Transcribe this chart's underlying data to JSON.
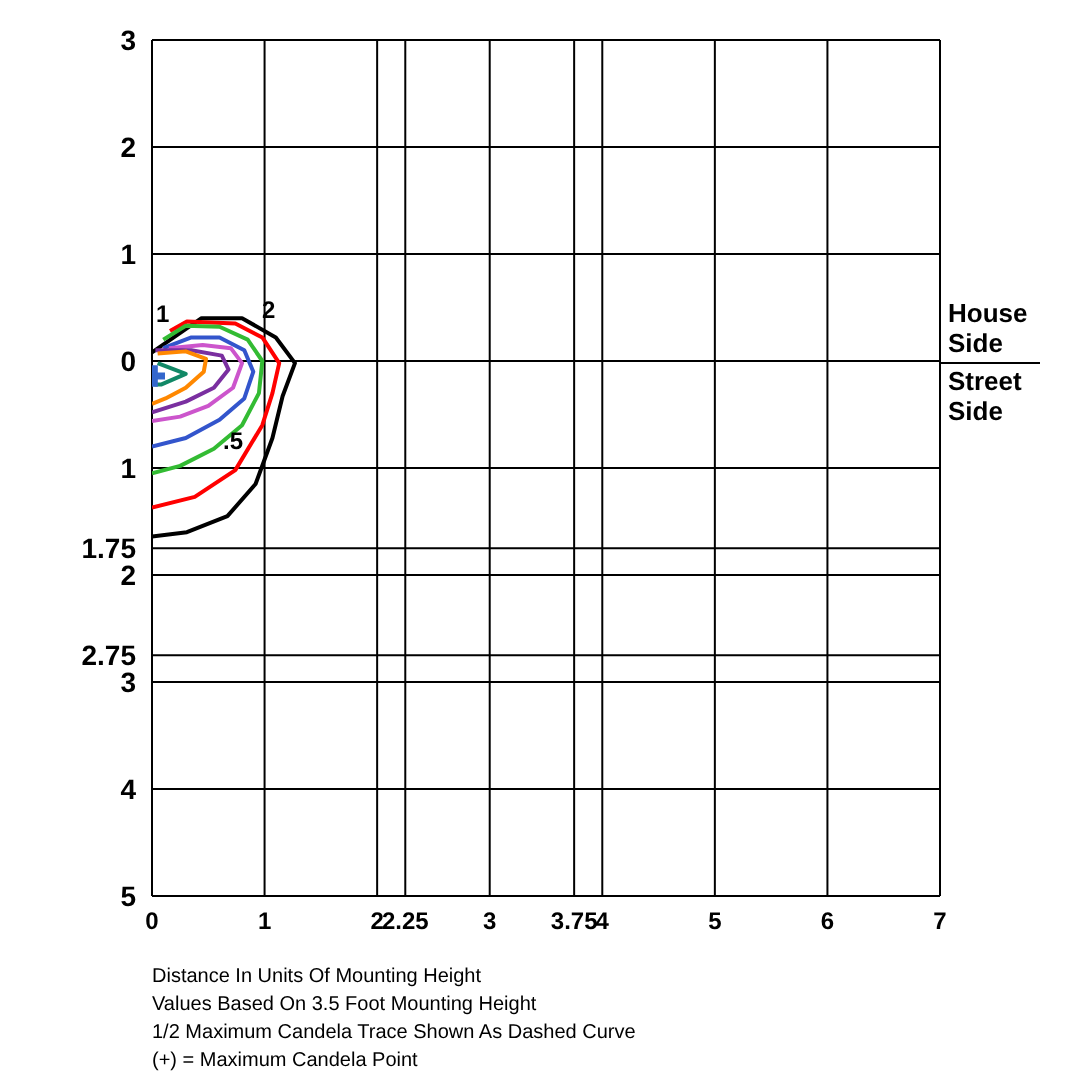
{
  "chart_data": {
    "type": "line",
    "xlim": [
      0,
      7
    ],
    "ylim": [
      -5,
      3
    ],
    "xticks": [
      0,
      1,
      2,
      2.25,
      3,
      3.75,
      4,
      5,
      6,
      7
    ],
    "yticks": [
      3,
      2,
      1,
      0,
      {
        "value": -1,
        "label": "1"
      },
      {
        "value": -1.75,
        "label": "1.75"
      },
      {
        "value": -2,
        "label": "2"
      },
      {
        "value": -2.75,
        "label": "2.75"
      },
      {
        "value": -3,
        "label": "3"
      },
      {
        "value": -4,
        "label": "4"
      },
      {
        "value": -5,
        "label": "5"
      }
    ],
    "grid": true,
    "legend": false,
    "marker": "none",
    "line_style": "solid",
    "series": [
      {
        "color": "#000000",
        "x": [
          0,
          0.44,
          0.8,
          1.1,
          1.27,
          1.16,
          1.07,
          0.92,
          0.67,
          0.31,
          0
        ],
        "values": [
          0.08,
          0.4,
          0.4,
          0.22,
          -0.02,
          -0.33,
          -0.72,
          -1.15,
          -1.45,
          -1.6,
          -1.64
        ]
      },
      {
        "color": "#ff0000",
        "x": [
          0.16,
          0.31,
          0.74,
          0.98,
          1.13,
          1.07,
          0.98,
          0.74,
          0.38,
          0
        ],
        "values": [
          0.28,
          0.37,
          0.35,
          0.22,
          -0.02,
          -0.3,
          -0.6,
          -1.02,
          -1.27,
          -1.37
        ]
      },
      {
        "color": "#33bb33",
        "x": [
          0.1,
          0.3,
          0.6,
          0.85,
          0.98,
          0.95,
          0.8,
          0.55,
          0.25,
          0
        ],
        "values": [
          0.2,
          0.33,
          0.32,
          0.2,
          0,
          -0.3,
          -0.6,
          -0.82,
          -0.98,
          -1.05
        ]
      },
      {
        "color": "#3355cc",
        "x": [
          0.1,
          0.35,
          0.6,
          0.82,
          0.9,
          0.82,
          0.6,
          0.3,
          0
        ],
        "values": [
          0.12,
          0.22,
          0.22,
          0.1,
          -0.1,
          -0.35,
          -0.55,
          -0.72,
          -0.8
        ]
      },
      {
        "color": "#cc55cc",
        "x": [
          0.15,
          0.45,
          0.7,
          0.8,
          0.72,
          0.5,
          0.25,
          0
        ],
        "values": [
          0.12,
          0.15,
          0.12,
          -0.02,
          -0.25,
          -0.42,
          -0.52,
          -0.56
        ]
      },
      {
        "color": "#7a2fa0",
        "x": [
          0.03,
          0.35,
          0.62,
          0.68,
          0.55,
          0.3,
          0
        ],
        "values": [
          0.1,
          0.1,
          0.05,
          -0.08,
          -0.25,
          -0.38,
          -0.48
        ]
      },
      {
        "color": "#ff8800",
        "x": [
          0.05,
          0.3,
          0.48,
          0.46,
          0.3,
          0.12,
          0
        ],
        "values": [
          0.07,
          0.09,
          0.02,
          -0.1,
          -0.25,
          -0.35,
          -0.4
        ]
      },
      {
        "color": "#118866",
        "x": [
          0.05,
          0.3,
          0.08,
          0.02
        ],
        "values": [
          -0.02,
          -0.12,
          -0.22,
          -0.22
        ]
      },
      {
        "type": "scatter",
        "marker": "cross",
        "color": "#3366cc",
        "x": [
          0.02
        ],
        "values": [
          -0.14
        ]
      }
    ],
    "annotations": [
      "1",
      "2",
      {
        "text": ".5",
        "x": 0.72,
        "y": -0.75
      },
      "House Side",
      "Street Side",
      "Distance In Units Of Mounting Height",
      "Values Based On 3.5 Foot Mounting Height",
      "1/2 Maximum Candela Trace Shown As Dashed Curve",
      "(+) = Maximum Candela Point"
    ]
  }
}
